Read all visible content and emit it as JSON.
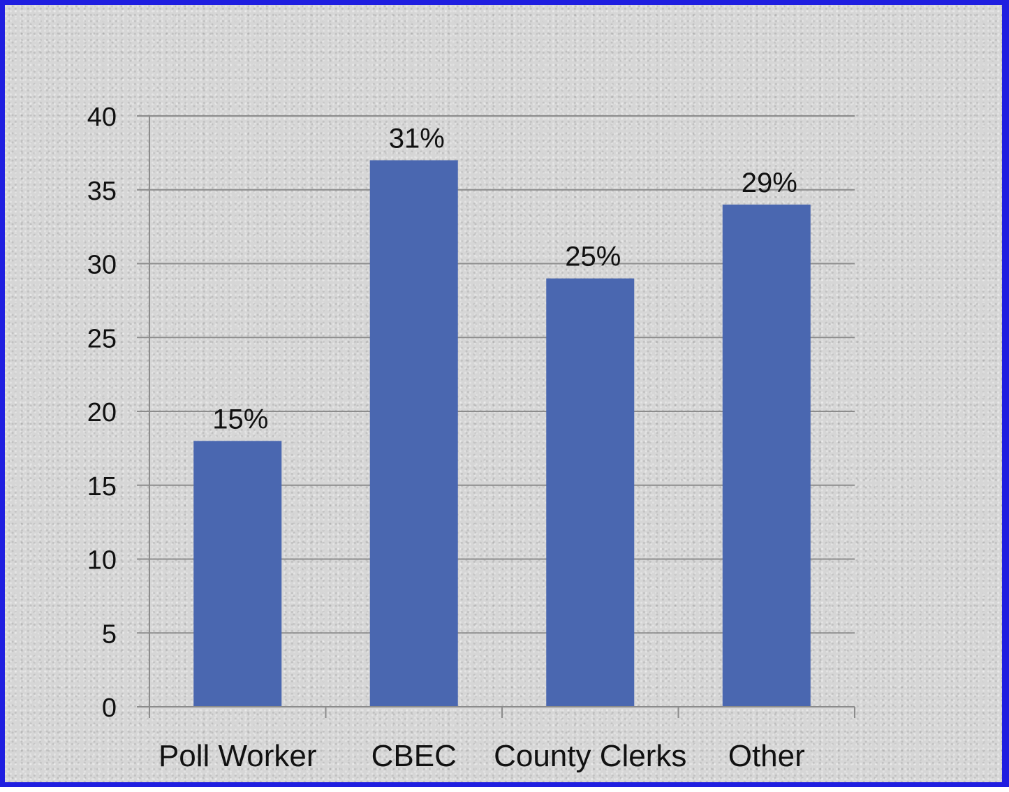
{
  "chart_data": {
    "type": "bar",
    "categories": [
      "Poll Worker",
      "CBEC",
      "County Clerks",
      "Other"
    ],
    "values": [
      18,
      37,
      29,
      34
    ],
    "data_labels": [
      "15%",
      "31%",
      "25%",
      "29%"
    ],
    "title": "",
    "xlabel": "",
    "ylabel": "",
    "ylim": [
      0,
      40
    ],
    "yticks": [
      "0",
      "5",
      "10",
      "15",
      "20",
      "25",
      "30",
      "35",
      "40"
    ],
    "grid": true,
    "legend": "none",
    "bar_color": "#4a67b0",
    "grid_color": "#8c8c8c",
    "frame_color": "#1f1ee0"
  }
}
